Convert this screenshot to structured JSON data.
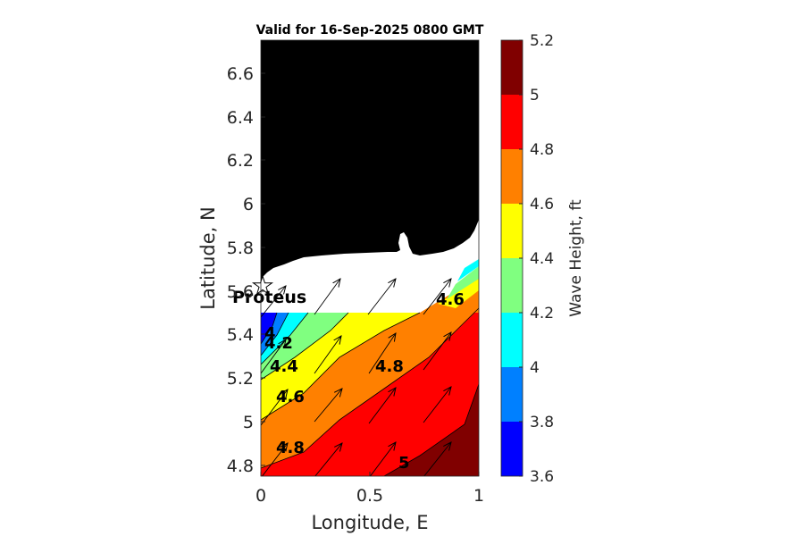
{
  "chart_data": {
    "type": "contour-map",
    "title": "Valid for 16-Sep-2025 0800 GMT",
    "xlabel": "Longitude, E",
    "ylabel": "Latitude, N",
    "xlim": [
      0,
      1
    ],
    "ylim": [
      4.75,
      6.75
    ],
    "x_ticks": [
      "0",
      "0.5",
      "1"
    ],
    "y_ticks": [
      "4.8",
      "5",
      "5.2",
      "5.4",
      "5.6",
      "5.8",
      "6",
      "6.2",
      "6.4",
      "6.6"
    ],
    "colorbar": {
      "label": "Wave Height, ft",
      "range": [
        3.6,
        5.2
      ],
      "ticks": [
        "3.6",
        "3.8",
        "4",
        "4.2",
        "4.4",
        "4.6",
        "4.8",
        "5",
        "5.2"
      ],
      "levels": [
        {
          "from": 3.6,
          "to": 3.8,
          "color": "#0000ff"
        },
        {
          "from": 3.8,
          "to": 4.0,
          "color": "#0080ff"
        },
        {
          "from": 4.0,
          "to": 4.2,
          "color": "#00ffff"
        },
        {
          "from": 4.2,
          "to": 4.4,
          "color": "#80ff80"
        },
        {
          "from": 4.4,
          "to": 4.6,
          "color": "#ffff00"
        },
        {
          "from": 4.6,
          "to": 4.8,
          "color": "#ff8000"
        },
        {
          "from": 4.8,
          "to": 5.0,
          "color": "#ff0000"
        },
        {
          "from": 5.0,
          "to": 5.2,
          "color": "#800000"
        }
      ]
    },
    "contour_labels": [
      {
        "text": "4",
        "lon": 0.01,
        "lat": 5.42
      },
      {
        "text": "4.2",
        "lon": 0.02,
        "lat": 5.36
      },
      {
        "text": "4.4",
        "lon": 0.05,
        "lat": 5.24
      },
      {
        "text": "4.6",
        "lon": 0.07,
        "lat": 5.07
      },
      {
        "text": "4.8",
        "lon": 0.07,
        "lat": 4.86
      },
      {
        "text": "4.8",
        "lon": 0.53,
        "lat": 5.24
      },
      {
        "text": "4.6",
        "lon": 0.81,
        "lat": 5.56
      },
      {
        "text": "5",
        "lon": 0.63,
        "lat": 4.8
      }
    ],
    "station": {
      "name": "Proteus",
      "lon": 0.0,
      "lat": 5.58
    },
    "wave_direction": "toward north-east",
    "land_color": "#000000",
    "no_data_color": "#ffffff"
  }
}
